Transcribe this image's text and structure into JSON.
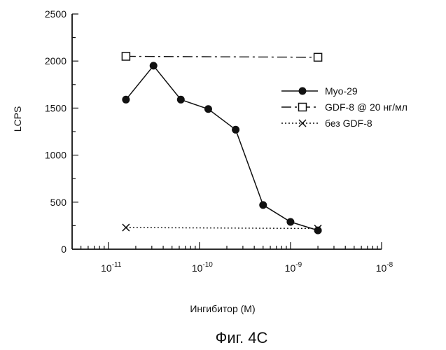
{
  "chart_data": {
    "type": "line",
    "title": "",
    "caption": "Фиг. 4С",
    "xlabel": "Ингибитор (М)",
    "ylabel": "LCPS",
    "xscale": "log",
    "xlim": [
      4e-12,
      1e-08
    ],
    "ylim": [
      0,
      2500
    ],
    "yticks": [
      0,
      500,
      1000,
      1500,
      2000,
      2500
    ],
    "ytick_labels": [
      "0",
      "500",
      "1000",
      "1500",
      "2000",
      "2500"
    ],
    "xticks": [
      {
        "value": 1e-11,
        "base": "10",
        "exp": "-11"
      },
      {
        "value": 1e-10,
        "base": "10",
        "exp": "-10"
      },
      {
        "value": 1e-09,
        "base": "10",
        "exp": "-9"
      },
      {
        "value": 1e-08,
        "base": "10",
        "exp": "-8"
      }
    ],
    "grid": false,
    "legend_position": "right",
    "series": [
      {
        "name": "Myo-29",
        "line": "solid",
        "marker": "filled-circle",
        "x": [
          1.56e-11,
          3.13e-11,
          6.25e-11,
          1.25e-10,
          2.5e-10,
          5e-10,
          1e-09,
          2e-09
        ],
        "values": [
          1590,
          1950,
          1590,
          1490,
          1270,
          470,
          290,
          200
        ]
      },
      {
        "name": "GDF-8 @ 20 нг/мл",
        "line": "dash-dot",
        "marker": "open-square",
        "x": [
          1.56e-11,
          2e-09
        ],
        "values": [
          2050,
          2040
        ]
      },
      {
        "name": "без GDF-8",
        "line": "dotted",
        "marker": "x",
        "x": [
          1.56e-11,
          2e-09
        ],
        "values": [
          230,
          220
        ]
      }
    ]
  }
}
